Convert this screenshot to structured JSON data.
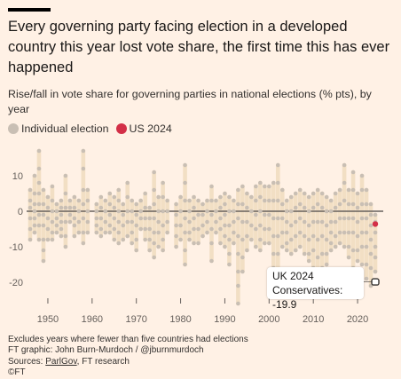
{
  "title": "Every governing party facing election in a developed country this year lost vote share, the first time this has ever happened",
  "subtitle": "Rise/fall in vote share for governing parties in national elections (% pts), by year",
  "legend": {
    "individual_label": "Individual election",
    "us_label": "US 2024",
    "individual_color": "#c9bfb4",
    "us_color": "#d32f47"
  },
  "callout": {
    "line1": "UK 2024",
    "line2": "Conservatives: -19.9"
  },
  "footer": {
    "note": "Excludes years where fewer than five countries had elections",
    "graphic": "FT graphic: John Burn-Murdoch / @jburnmurdoch",
    "sources_prefix": "Sources: ",
    "sources_link": "ParlGov",
    "sources_rest": ", FT research",
    "copyright": "©FT"
  },
  "chart_data": {
    "type": "scatter",
    "title": "",
    "xlabel": "",
    "ylabel": "",
    "xlim": [
      1946,
      2025
    ],
    "ylim": [
      -28,
      19
    ],
    "xticks": [
      1950,
      1960,
      1970,
      1980,
      1990,
      2000,
      2010,
      2020
    ],
    "yticks": [
      10,
      0,
      -10,
      -20
    ],
    "grid": false,
    "colors": {
      "range_bar": "#f2dfc4",
      "point": "#c9bfb4",
      "zero_line": "#66605c",
      "highlight": "#d32f47",
      "uk": "#33302e"
    },
    "years": [
      {
        "year": 1946,
        "values": [
          6,
          3,
          1,
          -2,
          -5,
          -8
        ]
      },
      {
        "year": 1947,
        "values": [
          10,
          5,
          2,
          0,
          -2,
          -4,
          -6
        ]
      },
      {
        "year": 1948,
        "values": [
          17,
          12,
          8,
          5,
          2,
          -1,
          -4,
          -8
        ]
      },
      {
        "year": 1949,
        "values": [
          6,
          2,
          -1,
          -4,
          -8,
          -11,
          -14
        ]
      },
      {
        "year": 1950,
        "values": [
          4,
          1,
          -2,
          -5,
          -8
        ]
      },
      {
        "year": 1951,
        "values": [
          7,
          3,
          0,
          -3,
          -6,
          -8
        ]
      },
      {
        "year": 1952,
        "values": [
          2,
          0,
          -2,
          -4,
          -6
        ]
      },
      {
        "year": 1953,
        "values": [
          3,
          1,
          -1,
          -3,
          -5,
          -7
        ]
      },
      {
        "year": 1954,
        "values": [
          10,
          5,
          1,
          -3,
          -7,
          -10
        ]
      },
      {
        "year": 1955,
        "values": [
          3,
          1,
          -1,
          -3
        ]
      },
      {
        "year": 1956,
        "values": [
          4,
          1,
          -2,
          -4,
          -7
        ]
      },
      {
        "year": 1957,
        "values": [
          3,
          0,
          -3,
          -6
        ]
      },
      {
        "year": 1958,
        "values": [
          17,
          12,
          6,
          2,
          -2,
          -6,
          -9
        ]
      },
      {
        "year": 1959,
        "values": [
          6,
          3,
          0,
          -3,
          -6
        ]
      },
      {
        "year": 1961,
        "values": [
          2,
          0,
          -2,
          -4,
          -6
        ]
      },
      {
        "year": 1962,
        "values": [
          4,
          1,
          -2,
          -5,
          -7
        ]
      },
      {
        "year": 1963,
        "values": [
          3,
          0,
          -3,
          -6
        ]
      },
      {
        "year": 1964,
        "values": [
          5,
          2,
          -1,
          -4,
          -6
        ]
      },
      {
        "year": 1965,
        "values": [
          4,
          1,
          -2,
          -5,
          -8
        ]
      },
      {
        "year": 1966,
        "values": [
          6,
          3,
          0,
          -3,
          -6,
          -9
        ]
      },
      {
        "year": 1967,
        "values": [
          2,
          -1,
          -4,
          -8
        ]
      },
      {
        "year": 1968,
        "values": [
          8,
          4,
          0,
          -3,
          -7
        ]
      },
      {
        "year": 1969,
        "values": [
          3,
          0,
          -3,
          -6,
          -9
        ]
      },
      {
        "year": 1970,
        "values": [
          2,
          -1,
          -4,
          -8,
          -11
        ]
      },
      {
        "year": 1971,
        "values": [
          3,
          0,
          -2,
          -5
        ]
      },
      {
        "year": 1972,
        "values": [
          5,
          1,
          -2,
          -5,
          -8
        ]
      },
      {
        "year": 1973,
        "values": [
          1,
          -2,
          -5,
          -8,
          -11
        ]
      },
      {
        "year": 1974,
        "values": [
          11,
          6,
          2,
          -2,
          -6,
          -9,
          -13
        ]
      },
      {
        "year": 1975,
        "values": [
          4,
          0,
          -3,
          -6,
          -10
        ]
      },
      {
        "year": 1976,
        "values": [
          8,
          4,
          0,
          -4,
          -8,
          -11
        ]
      },
      {
        "year": 1977,
        "values": [
          3,
          0,
          -3,
          -6
        ]
      },
      {
        "year": 1979,
        "values": [
          2,
          -1,
          -4,
          -7,
          -10
        ]
      },
      {
        "year": 1980,
        "values": [
          4,
          0,
          -4,
          -8
        ]
      },
      {
        "year": 1981,
        "values": [
          13,
          8,
          3,
          -2,
          -6,
          -11,
          -15
        ]
      },
      {
        "year": 1982,
        "values": [
          3,
          0,
          -3,
          -6,
          -8
        ]
      },
      {
        "year": 1983,
        "values": [
          4,
          1,
          -2,
          -5,
          -9
        ]
      },
      {
        "year": 1984,
        "values": [
          3,
          -1,
          -5,
          -9
        ]
      },
      {
        "year": 1985,
        "values": [
          2,
          -1,
          -4,
          -7
        ]
      },
      {
        "year": 1986,
        "values": [
          3,
          0,
          -3,
          -6
        ]
      },
      {
        "year": 1987,
        "values": [
          7,
          3,
          -1,
          -5,
          -9,
          -14
        ]
      },
      {
        "year": 1988,
        "values": [
          3,
          0,
          -3,
          -6
        ]
      },
      {
        "year": 1989,
        "values": [
          4,
          1,
          -2,
          -5,
          -9
        ]
      },
      {
        "year": 1990,
        "values": [
          5,
          2,
          -1,
          -4,
          -7,
          -10
        ]
      },
      {
        "year": 1991,
        "values": [
          4,
          0,
          -4,
          -8,
          -12,
          -15
        ]
      },
      {
        "year": 1992,
        "values": [
          3,
          0,
          -3,
          -6,
          -9
        ]
      },
      {
        "year": 1993,
        "values": [
          6,
          2,
          -2,
          -7,
          -12,
          -17,
          -21,
          -26
        ]
      },
      {
        "year": 1994,
        "values": [
          7,
          2,
          -3,
          -8,
          -13,
          -17
        ]
      },
      {
        "year": 1995,
        "values": [
          5,
          1,
          -3,
          -7,
          -11
        ]
      },
      {
        "year": 1996,
        "values": [
          4,
          0,
          -4,
          -8
        ]
      },
      {
        "year": 1997,
        "values": [
          7,
          3,
          -1,
          -5,
          -10
        ]
      },
      {
        "year": 1998,
        "values": [
          8,
          4,
          0,
          -4,
          -8,
          -11
        ]
      },
      {
        "year": 1999,
        "values": [
          7,
          3,
          -1,
          -5,
          -9
        ]
      },
      {
        "year": 2000,
        "values": [
          7,
          3,
          -1,
          -5,
          -9
        ]
      },
      {
        "year": 2001,
        "values": [
          8,
          3,
          -2,
          -7,
          -12,
          -16
        ]
      },
      {
        "year": 2002,
        "values": [
          13,
          8,
          3,
          -2,
          -7,
          -12,
          -19
        ]
      },
      {
        "year": 2003,
        "values": [
          6,
          2,
          -2,
          -6,
          -10
        ]
      },
      {
        "year": 2004,
        "values": [
          3,
          0,
          -3,
          -6,
          -9,
          -11
        ]
      },
      {
        "year": 2005,
        "values": [
          4,
          0,
          -4,
          -8,
          -12
        ]
      },
      {
        "year": 2006,
        "values": [
          5,
          1,
          -3,
          -7,
          -11
        ]
      },
      {
        "year": 2007,
        "values": [
          6,
          2,
          -2,
          -6,
          -10
        ]
      },
      {
        "year": 2008,
        "values": [
          5,
          1,
          -3,
          -7,
          -12
        ]
      },
      {
        "year": 2009,
        "values": [
          4,
          0,
          -4,
          -8,
          -12,
          -14
        ]
      },
      {
        "year": 2010,
        "values": [
          5,
          1,
          -3,
          -7,
          -11,
          -16
        ]
      },
      {
        "year": 2011,
        "values": [
          6,
          2,
          -3,
          -8,
          -13,
          -18
        ]
      },
      {
        "year": 2012,
        "values": [
          5,
          1,
          -3,
          -7,
          -12,
          -16
        ]
      },
      {
        "year": 2013,
        "values": [
          4,
          0,
          -4,
          -8,
          -12,
          -15
        ]
      },
      {
        "year": 2014,
        "values": [
          3,
          0,
          -3,
          -6,
          -9,
          -11
        ]
      },
      {
        "year": 2015,
        "values": [
          5,
          1,
          -3,
          -7,
          -10
        ]
      },
      {
        "year": 2016,
        "values": [
          6,
          2,
          -2,
          -6,
          -9
        ]
      },
      {
        "year": 2017,
        "values": [
          13,
          8,
          3,
          -2,
          -6,
          -10
        ]
      },
      {
        "year": 2018,
        "values": [
          6,
          2,
          -2,
          -6,
          -10,
          -13
        ]
      },
      {
        "year": 2019,
        "values": [
          11,
          6,
          2,
          -2,
          -6,
          -11,
          -16
        ]
      },
      {
        "year": 2020,
        "values": [
          5,
          1,
          -3,
          -7,
          -11,
          -14
        ]
      },
      {
        "year": 2021,
        "values": [
          10,
          6,
          2,
          -2,
          -6,
          -10,
          -15
        ]
      },
      {
        "year": 2022,
        "values": [
          6,
          2,
          -2,
          -6,
          -10,
          -15,
          -19
        ]
      },
      {
        "year": 2023,
        "values": [
          2,
          -1,
          -4,
          -8,
          -12,
          -16,
          -21
        ]
      },
      {
        "year": 2024,
        "values": [
          -1,
          -3,
          -6,
          -10,
          -13,
          -17
        ]
      }
    ],
    "highlights": [
      {
        "label": "US 2024",
        "year": 2024,
        "value": -3.6
      },
      {
        "label": "UK 2024",
        "year": 2024,
        "value": -19.9
      }
    ]
  }
}
